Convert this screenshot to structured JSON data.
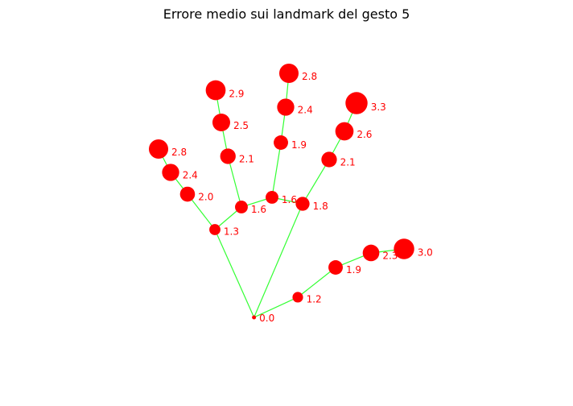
{
  "chart_data": {
    "type": "scatter",
    "title": "Errore medio sui landmark del gesto 5",
    "xlabel": "",
    "ylabel": "",
    "axes_visible": false,
    "grid": false,
    "colors": {
      "point": "#ff0000",
      "edge": "#33ff33",
      "label": "#ff0000"
    },
    "size_encodes": "error",
    "points": [
      {
        "id": 0,
        "x": 0.4433,
        "y": 0.7817,
        "error": 0.0,
        "label": "0.0"
      },
      {
        "id": 1,
        "x": 0.5197,
        "y": 0.7321,
        "error": 1.2,
        "label": "1.2"
      },
      {
        "id": 2,
        "x": 0.5857,
        "y": 0.6587,
        "error": 1.9,
        "label": "1.9"
      },
      {
        "id": 3,
        "x": 0.6475,
        "y": 0.623,
        "error": 2.3,
        "label": "2.3"
      },
      {
        "id": 4,
        "x": 0.7051,
        "y": 0.6131,
        "error": 3.0,
        "label": "3.0"
      },
      {
        "id": 5,
        "x": 0.5281,
        "y": 0.502,
        "error": 1.8,
        "label": "1.8"
      },
      {
        "id": 6,
        "x": 0.5744,
        "y": 0.3929,
        "error": 2.1,
        "label": "2.1"
      },
      {
        "id": 7,
        "x": 0.6011,
        "y": 0.3234,
        "error": 2.6,
        "label": "2.6"
      },
      {
        "id": 8,
        "x": 0.6222,
        "y": 0.254,
        "error": 3.3,
        "label": "3.3"
      },
      {
        "id": 9,
        "x": 0.4747,
        "y": 0.4861,
        "error": 1.6,
        "label": "1.6"
      },
      {
        "id": 10,
        "x": 0.4902,
        "y": 0.3512,
        "error": 1.9,
        "label": "1.9"
      },
      {
        "id": 11,
        "x": 0.4986,
        "y": 0.2639,
        "error": 2.4,
        "label": "2.4"
      },
      {
        "id": 12,
        "x": 0.5042,
        "y": 0.1806,
        "error": 2.8,
        "label": "2.8"
      },
      {
        "id": 13,
        "x": 0.4213,
        "y": 0.5099,
        "error": 1.6,
        "label": "1.6"
      },
      {
        "id": 14,
        "x": 0.3978,
        "y": 0.3849,
        "error": 2.1,
        "label": "2.1"
      },
      {
        "id": 15,
        "x": 0.3862,
        "y": 0.3016,
        "error": 2.5,
        "label": "2.5"
      },
      {
        "id": 16,
        "x": 0.3764,
        "y": 0.2222,
        "error": 2.9,
        "label": "2.9"
      },
      {
        "id": 17,
        "x": 0.375,
        "y": 0.5655,
        "error": 1.3,
        "label": "1.3"
      },
      {
        "id": 18,
        "x": 0.3272,
        "y": 0.4782,
        "error": 2.0,
        "label": "2.0"
      },
      {
        "id": 19,
        "x": 0.2978,
        "y": 0.4246,
        "error": 2.4,
        "label": "2.4"
      },
      {
        "id": 20,
        "x": 0.2767,
        "y": 0.3671,
        "error": 2.8,
        "label": "2.8"
      }
    ],
    "edges": [
      [
        0,
        1
      ],
      [
        1,
        2
      ],
      [
        2,
        3
      ],
      [
        3,
        4
      ],
      [
        0,
        5
      ],
      [
        5,
        6
      ],
      [
        6,
        7
      ],
      [
        7,
        8
      ],
      [
        5,
        9
      ],
      [
        9,
        10
      ],
      [
        10,
        11
      ],
      [
        11,
        12
      ],
      [
        9,
        13
      ],
      [
        13,
        14
      ],
      [
        14,
        15
      ],
      [
        15,
        16
      ],
      [
        13,
        17
      ],
      [
        17,
        18
      ],
      [
        18,
        19
      ],
      [
        19,
        20
      ],
      [
        0,
        17
      ]
    ]
  }
}
